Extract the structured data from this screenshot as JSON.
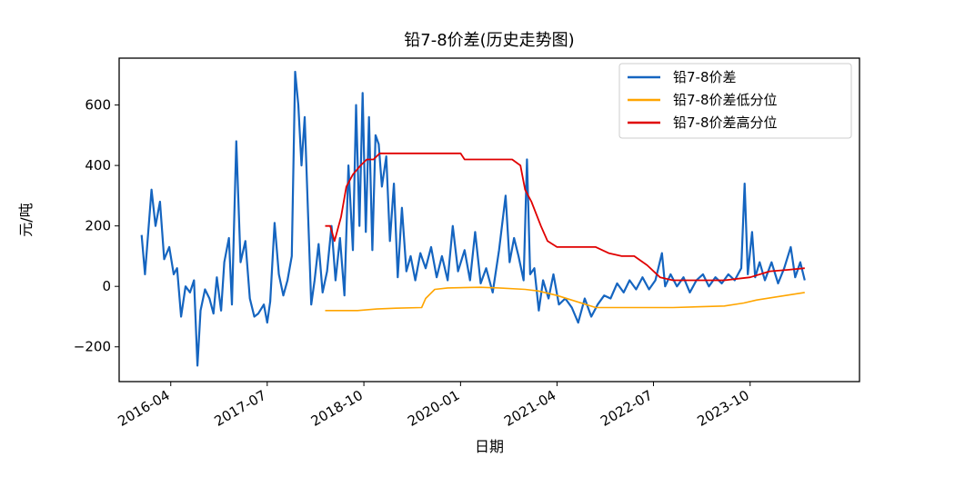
{
  "chart_data": {
    "type": "line",
    "title": "铅7-8价差(历史走势图)",
    "xlabel": "日期",
    "ylabel": "元/吨",
    "xlim": [
      "2015-08-01",
      "2025-03-01"
    ],
    "ylim": [
      -315,
      755
    ],
    "yticks": [
      -200,
      0,
      200,
      400,
      600
    ],
    "xticks": [
      {
        "date": "2016-04-01",
        "label": "2016-04"
      },
      {
        "date": "2017-07-01",
        "label": "2017-07"
      },
      {
        "date": "2018-10-01",
        "label": "2018-10"
      },
      {
        "date": "2020-01-01",
        "label": "2020-01"
      },
      {
        "date": "2021-04-01",
        "label": "2021-04"
      },
      {
        "date": "2022-07-01",
        "label": "2022-07"
      },
      {
        "date": "2023-10-01",
        "label": "2023-10"
      }
    ],
    "legend_position": "top-right",
    "series": [
      {
        "name": "铅7-8价差",
        "color": "#1565c0",
        "points": [
          [
            "2015-11-15",
            170
          ],
          [
            "2015-12-01",
            40
          ],
          [
            "2016-01-01",
            320
          ],
          [
            "2016-01-20",
            200
          ],
          [
            "2016-02-10",
            280
          ],
          [
            "2016-03-01",
            90
          ],
          [
            "2016-03-25",
            130
          ],
          [
            "2016-04-15",
            40
          ],
          [
            "2016-05-01",
            60
          ],
          [
            "2016-05-20",
            -100
          ],
          [
            "2016-06-10",
            0
          ],
          [
            "2016-07-01",
            -20
          ],
          [
            "2016-07-20",
            20
          ],
          [
            "2016-08-05",
            -262
          ],
          [
            "2016-08-20",
            -80
          ],
          [
            "2016-09-10",
            -10
          ],
          [
            "2016-10-01",
            -40
          ],
          [
            "2016-10-20",
            -90
          ],
          [
            "2016-11-05",
            30
          ],
          [
            "2016-11-25",
            -80
          ],
          [
            "2016-12-10",
            80
          ],
          [
            "2017-01-01",
            160
          ],
          [
            "2017-01-15",
            -60
          ],
          [
            "2017-02-05",
            480
          ],
          [
            "2017-02-25",
            80
          ],
          [
            "2017-03-20",
            150
          ],
          [
            "2017-04-10",
            -40
          ],
          [
            "2017-05-01",
            -100
          ],
          [
            "2017-05-20",
            -90
          ],
          [
            "2017-06-15",
            -60
          ],
          [
            "2017-07-01",
            -120
          ],
          [
            "2017-07-15",
            -50
          ],
          [
            "2017-08-05",
            210
          ],
          [
            "2017-08-25",
            40
          ],
          [
            "2017-09-15",
            -30
          ],
          [
            "2017-10-05",
            20
          ],
          [
            "2017-10-25",
            100
          ],
          [
            "2017-11-10",
            710
          ],
          [
            "2017-11-25",
            600
          ],
          [
            "2017-12-10",
            400
          ],
          [
            "2017-12-25",
            560
          ],
          [
            "2018-01-10",
            240
          ],
          [
            "2018-01-25",
            -60
          ],
          [
            "2018-02-10",
            20
          ],
          [
            "2018-03-01",
            140
          ],
          [
            "2018-03-20",
            -20
          ],
          [
            "2018-04-10",
            50
          ],
          [
            "2018-05-01",
            200
          ],
          [
            "2018-05-20",
            20
          ],
          [
            "2018-06-10",
            160
          ],
          [
            "2018-07-01",
            -30
          ],
          [
            "2018-07-20",
            400
          ],
          [
            "2018-08-10",
            120
          ],
          [
            "2018-08-25",
            600
          ],
          [
            "2018-09-10",
            200
          ],
          [
            "2018-09-25",
            640
          ],
          [
            "2018-10-10",
            180
          ],
          [
            "2018-10-25",
            560
          ],
          [
            "2018-11-10",
            120
          ],
          [
            "2018-11-25",
            500
          ],
          [
            "2018-12-10",
            470
          ],
          [
            "2018-12-25",
            330
          ],
          [
            "2019-01-15",
            430
          ],
          [
            "2019-02-01",
            150
          ],
          [
            "2019-02-20",
            340
          ],
          [
            "2019-03-10",
            30
          ],
          [
            "2019-03-30",
            260
          ],
          [
            "2019-04-20",
            50
          ],
          [
            "2019-05-10",
            100
          ],
          [
            "2019-06-01",
            20
          ],
          [
            "2019-06-25",
            110
          ],
          [
            "2019-07-20",
            60
          ],
          [
            "2019-08-15",
            130
          ],
          [
            "2019-09-10",
            30
          ],
          [
            "2019-10-05",
            100
          ],
          [
            "2019-11-01",
            20
          ],
          [
            "2019-11-25",
            200
          ],
          [
            "2019-12-20",
            50
          ],
          [
            "2020-01-20",
            120
          ],
          [
            "2020-02-15",
            20
          ],
          [
            "2020-03-10",
            180
          ],
          [
            "2020-04-05",
            10
          ],
          [
            "2020-05-01",
            60
          ],
          [
            "2020-06-01",
            -20
          ],
          [
            "2020-07-01",
            120
          ],
          [
            "2020-08-01",
            300
          ],
          [
            "2020-08-20",
            80
          ],
          [
            "2020-09-10",
            160
          ],
          [
            "2020-10-01",
            100
          ],
          [
            "2020-10-25",
            20
          ],
          [
            "2020-11-10",
            420
          ],
          [
            "2020-11-25",
            40
          ],
          [
            "2020-12-15",
            60
          ],
          [
            "2021-01-05",
            -80
          ],
          [
            "2021-01-25",
            20
          ],
          [
            "2021-02-20",
            -40
          ],
          [
            "2021-03-15",
            40
          ],
          [
            "2021-04-10",
            -60
          ],
          [
            "2021-05-10",
            -40
          ],
          [
            "2021-06-10",
            -70
          ],
          [
            "2021-07-10",
            -120
          ],
          [
            "2021-08-10",
            -40
          ],
          [
            "2021-09-10",
            -100
          ],
          [
            "2021-10-10",
            -60
          ],
          [
            "2021-11-10",
            -30
          ],
          [
            "2021-12-10",
            -40
          ],
          [
            "2022-01-10",
            10
          ],
          [
            "2022-02-10",
            -20
          ],
          [
            "2022-03-10",
            20
          ],
          [
            "2022-04-10",
            -10
          ],
          [
            "2022-05-10",
            30
          ],
          [
            "2022-06-10",
            -10
          ],
          [
            "2022-07-10",
            20
          ],
          [
            "2022-08-10",
            110
          ],
          [
            "2022-08-25",
            0
          ],
          [
            "2022-09-20",
            40
          ],
          [
            "2022-10-20",
            0
          ],
          [
            "2022-11-20",
            30
          ],
          [
            "2022-12-20",
            -20
          ],
          [
            "2023-01-20",
            20
          ],
          [
            "2023-02-20",
            40
          ],
          [
            "2023-03-20",
            0
          ],
          [
            "2023-04-20",
            30
          ],
          [
            "2023-05-20",
            10
          ],
          [
            "2023-06-20",
            40
          ],
          [
            "2023-07-20",
            20
          ],
          [
            "2023-08-20",
            60
          ],
          [
            "2023-09-05",
            340
          ],
          [
            "2023-09-20",
            40
          ],
          [
            "2023-10-10",
            180
          ],
          [
            "2023-10-25",
            30
          ],
          [
            "2023-11-15",
            80
          ],
          [
            "2023-12-10",
            20
          ],
          [
            "2024-01-10",
            80
          ],
          [
            "2024-02-10",
            10
          ],
          [
            "2024-03-10",
            60
          ],
          [
            "2024-04-10",
            130
          ],
          [
            "2024-05-01",
            30
          ],
          [
            "2024-05-25",
            80
          ],
          [
            "2024-06-15",
            20
          ]
        ]
      },
      {
        "name": "铅7-8价差低分位",
        "color": "#ffa500",
        "points": [
          [
            "2018-04-01",
            -80
          ],
          [
            "2018-09-01",
            -80
          ],
          [
            "2018-12-01",
            -75
          ],
          [
            "2019-03-01",
            -72
          ],
          [
            "2019-07-01",
            -70
          ],
          [
            "2019-07-20",
            -40
          ],
          [
            "2019-09-01",
            -10
          ],
          [
            "2019-11-01",
            -5
          ],
          [
            "2020-04-01",
            -3
          ],
          [
            "2020-07-01",
            -5
          ],
          [
            "2020-11-01",
            -10
          ],
          [
            "2021-01-01",
            -15
          ],
          [
            "2021-04-01",
            -30
          ],
          [
            "2021-07-01",
            -50
          ],
          [
            "2021-10-01",
            -70
          ],
          [
            "2022-10-01",
            -70
          ],
          [
            "2023-06-01",
            -65
          ],
          [
            "2023-09-01",
            -55
          ],
          [
            "2023-11-01",
            -45
          ],
          [
            "2024-02-01",
            -35
          ],
          [
            "2024-06-15",
            -20
          ]
        ]
      },
      {
        "name": "铅7-8价差高分位",
        "color": "#e00000",
        "points": [
          [
            "2018-04-01",
            200
          ],
          [
            "2018-04-25",
            200
          ],
          [
            "2018-05-15",
            150
          ],
          [
            "2018-06-15",
            230
          ],
          [
            "2018-07-10",
            330
          ],
          [
            "2018-08-10",
            370
          ],
          [
            "2018-09-15",
            400
          ],
          [
            "2018-10-15",
            420
          ],
          [
            "2018-11-15",
            420
          ],
          [
            "2018-12-15",
            440
          ],
          [
            "2019-05-01",
            440
          ],
          [
            "2019-11-01",
            440
          ],
          [
            "2020-01-01",
            440
          ],
          [
            "2020-01-20",
            420
          ],
          [
            "2020-06-01",
            420
          ],
          [
            "2020-09-01",
            420
          ],
          [
            "2020-10-10",
            400
          ],
          [
            "2020-11-01",
            320
          ],
          [
            "2020-12-01",
            280
          ],
          [
            "2021-01-15",
            200
          ],
          [
            "2021-02-15",
            150
          ],
          [
            "2021-04-01",
            130
          ],
          [
            "2021-10-01",
            130
          ],
          [
            "2021-12-01",
            110
          ],
          [
            "2022-02-01",
            100
          ],
          [
            "2022-04-01",
            100
          ],
          [
            "2022-06-01",
            70
          ],
          [
            "2022-08-01",
            30
          ],
          [
            "2022-10-01",
            20
          ],
          [
            "2023-06-01",
            20
          ],
          [
            "2023-10-01",
            30
          ],
          [
            "2024-01-01",
            50
          ],
          [
            "2024-04-01",
            55
          ],
          [
            "2024-06-15",
            60
          ]
        ]
      }
    ]
  }
}
